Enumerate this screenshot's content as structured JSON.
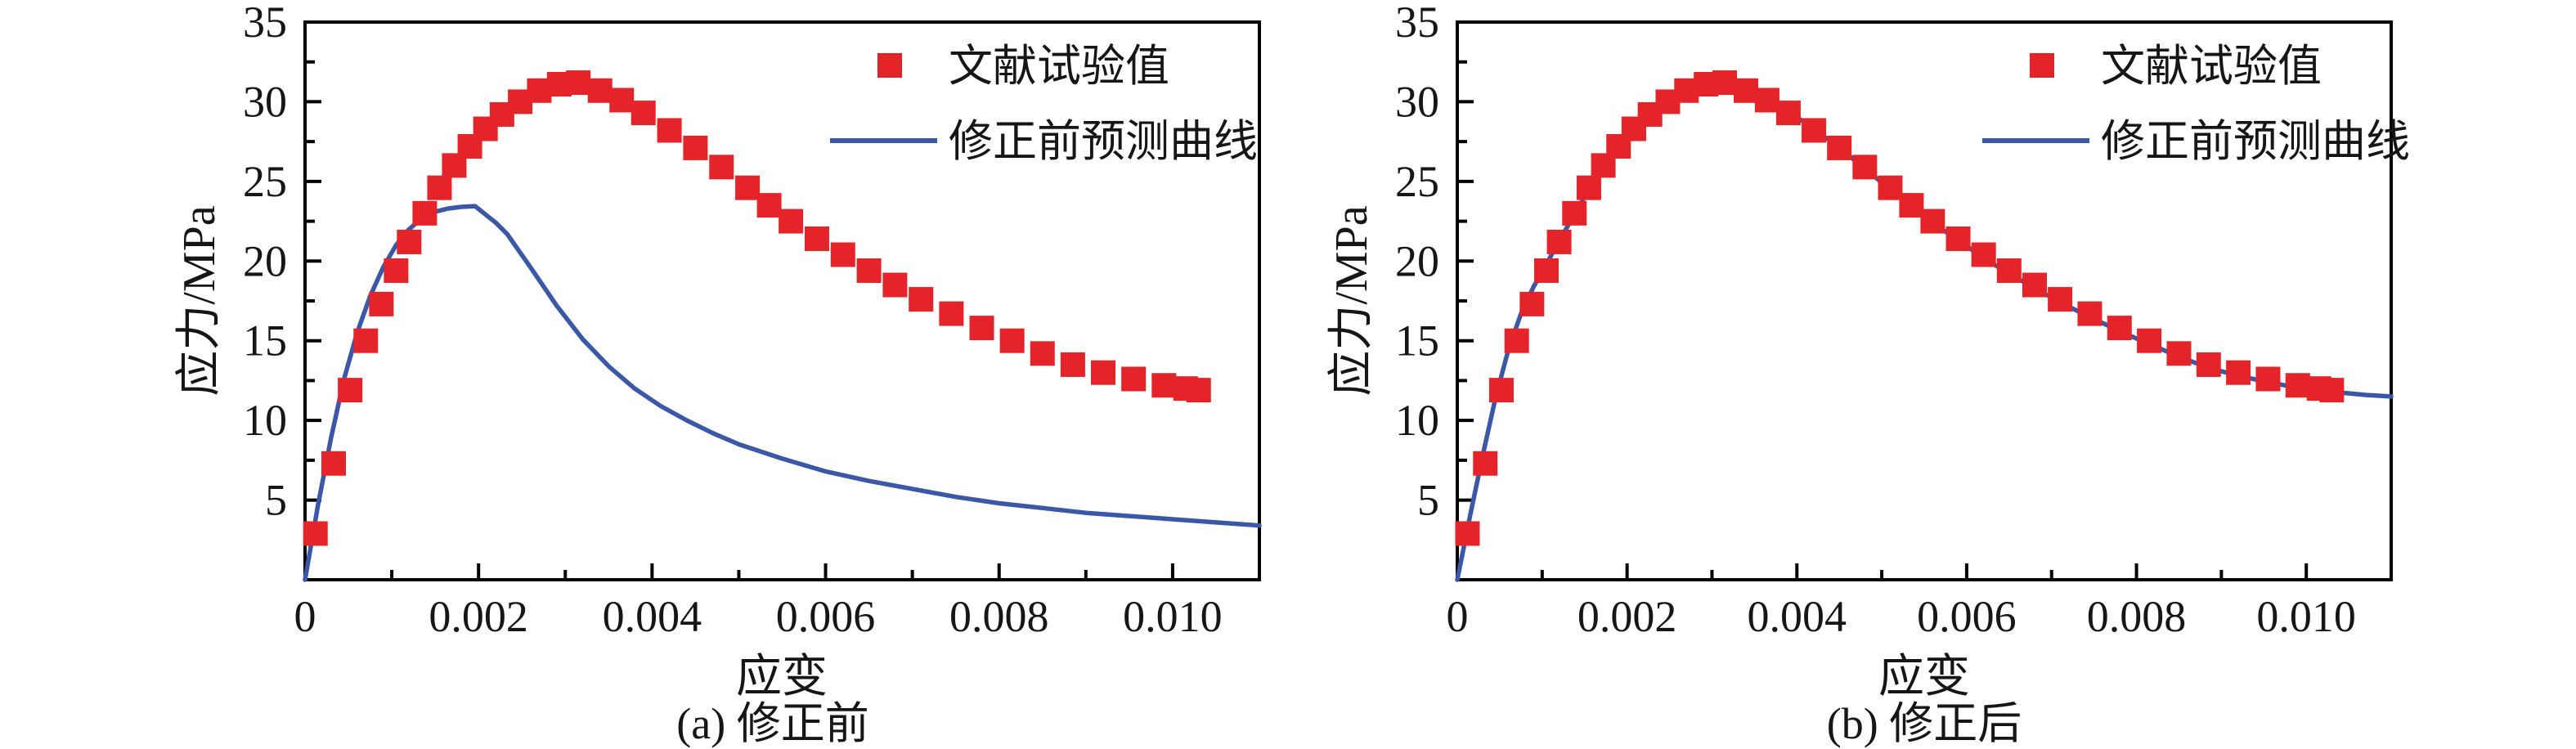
{
  "figure": {
    "background": "#ffffff"
  },
  "colors": {
    "experimental_red": "#e5242a",
    "prediction_blue": "#3a57a8",
    "axis_black": "#000000",
    "text_black": "#161616"
  },
  "chart_data": [
    {
      "type": "scatter",
      "title": "(a) 修正前",
      "xlabel": "应变",
      "ylabel": "应力/MPa",
      "xlim": [
        0,
        0.011
      ],
      "ylim": [
        0,
        35
      ],
      "grid": "off",
      "legend_position": "top-right-inside",
      "xticks_major": [
        0,
        0.002,
        0.004,
        0.006,
        0.008,
        0.01
      ],
      "xtick_labels": [
        "0",
        "0.002",
        "0.004",
        "0.006",
        "0.008",
        "0.010"
      ],
      "xticks_minor": [
        0.001,
        0.003,
        0.005,
        0.007,
        0.009,
        0.011
      ],
      "yticks_major": [
        5,
        10,
        15,
        20,
        25,
        30,
        35
      ],
      "ytick_labels": [
        "5",
        "10",
        "15",
        "20",
        "25",
        "30",
        "35"
      ],
      "yticks_minor": [
        2.5,
        7.5,
        12.5,
        17.5,
        22.5,
        27.5,
        32.5
      ],
      "legend": [
        {
          "name": "文献试验值",
          "kind": "scatter",
          "color": "#e5242a"
        },
        {
          "name": "修正前预测曲线",
          "kind": "line",
          "color": "#3a57a8"
        }
      ],
      "series": [
        {
          "name": "文献试验值",
          "kind": "scatter",
          "marker": "square",
          "color": "#e5242a",
          "points": [
            [
              0.00012,
              2.9
            ],
            [
              0.00033,
              7.3
            ],
            [
              0.00052,
              11.9
            ],
            [
              0.0007,
              15.0
            ],
            [
              0.00088,
              17.3
            ],
            [
              0.00105,
              19.4
            ],
            [
              0.0012,
              21.2
            ],
            [
              0.00138,
              23.0
            ],
            [
              0.00155,
              24.6
            ],
            [
              0.00172,
              26.0
            ],
            [
              0.0019,
              27.2
            ],
            [
              0.00208,
              28.3
            ],
            [
              0.00227,
              29.2
            ],
            [
              0.00248,
              30.0
            ],
            [
              0.0027,
              30.7
            ],
            [
              0.00293,
              31.1
            ],
            [
              0.00315,
              31.2
            ],
            [
              0.0034,
              30.7
            ],
            [
              0.00365,
              30.1
            ],
            [
              0.0039,
              29.3
            ],
            [
              0.0042,
              28.2
            ],
            [
              0.0045,
              27.1
            ],
            [
              0.0048,
              25.9
            ],
            [
              0.0051,
              24.6
            ],
            [
              0.00535,
              23.5
            ],
            [
              0.0056,
              22.5
            ],
            [
              0.0059,
              21.4
            ],
            [
              0.0062,
              20.4
            ],
            [
              0.0065,
              19.4
            ],
            [
              0.0068,
              18.5
            ],
            [
              0.0071,
              17.6
            ],
            [
              0.00745,
              16.7
            ],
            [
              0.0078,
              15.8
            ],
            [
              0.00815,
              15.0
            ],
            [
              0.0085,
              14.2
            ],
            [
              0.00885,
              13.5
            ],
            [
              0.0092,
              13.0
            ],
            [
              0.00955,
              12.6
            ],
            [
              0.0099,
              12.2
            ],
            [
              0.01015,
              12.0
            ],
            [
              0.0103,
              11.9
            ]
          ]
        },
        {
          "name": "修正前预测曲线",
          "kind": "line",
          "color": "#3a57a8",
          "points": [
            [
              0,
              0
            ],
            [
              0.00015,
              4.7
            ],
            [
              0.0003,
              8.9
            ],
            [
              0.00045,
              12.6
            ],
            [
              0.0006,
              15.5
            ],
            [
              0.00075,
              17.8
            ],
            [
              0.0009,
              19.6
            ],
            [
              0.00105,
              21.0
            ],
            [
              0.0012,
              22.0
            ],
            [
              0.00135,
              22.7
            ],
            [
              0.0015,
              23.1
            ],
            [
              0.00165,
              23.3
            ],
            [
              0.0018,
              23.4
            ],
            [
              0.00196,
              23.45
            ],
            [
              0.0022,
              22.4
            ],
            [
              0.00233,
              21.7
            ],
            [
              0.0026,
              19.6
            ],
            [
              0.0029,
              17.2
            ],
            [
              0.0032,
              15.1
            ],
            [
              0.0035,
              13.4
            ],
            [
              0.0038,
              12.0
            ],
            [
              0.0041,
              10.9
            ],
            [
              0.0044,
              10.0
            ],
            [
              0.0047,
              9.2
            ],
            [
              0.005,
              8.5
            ],
            [
              0.0055,
              7.6
            ],
            [
              0.006,
              6.8
            ],
            [
              0.0065,
              6.2
            ],
            [
              0.007,
              5.7
            ],
            [
              0.0075,
              5.2
            ],
            [
              0.008,
              4.8
            ],
            [
              0.0085,
              4.5
            ],
            [
              0.009,
              4.2
            ],
            [
              0.0095,
              4.0
            ],
            [
              0.01,
              3.8
            ],
            [
              0.0105,
              3.6
            ],
            [
              0.011,
              3.4
            ]
          ]
        }
      ]
    },
    {
      "type": "scatter",
      "title": "(b) 修正后",
      "xlabel": "应变",
      "ylabel": "应力/MPa",
      "xlim": [
        0,
        0.011
      ],
      "ylim": [
        0,
        35
      ],
      "grid": "off",
      "legend_position": "top-right-inside",
      "xticks_major": [
        0,
        0.002,
        0.004,
        0.006,
        0.008,
        0.01
      ],
      "xtick_labels": [
        "0",
        "0.002",
        "0.004",
        "0.006",
        "0.008",
        "0.010"
      ],
      "xticks_minor": [
        0.001,
        0.003,
        0.005,
        0.007,
        0.009,
        0.011
      ],
      "yticks_major": [
        5,
        10,
        15,
        20,
        25,
        30,
        35
      ],
      "ytick_labels": [
        "5",
        "10",
        "15",
        "20",
        "25",
        "30",
        "35"
      ],
      "yticks_minor": [
        2.5,
        7.5,
        12.5,
        17.5,
        22.5,
        27.5,
        32.5
      ],
      "legend": [
        {
          "name": "文献试验值",
          "kind": "scatter",
          "color": "#e5242a"
        },
        {
          "name": "修正前预测曲线",
          "kind": "line",
          "color": "#3a57a8"
        }
      ],
      "series": [
        {
          "name": "文献试验值",
          "kind": "scatter",
          "marker": "square",
          "color": "#e5242a",
          "points": [
            [
              0.00012,
              2.9
            ],
            [
              0.00033,
              7.3
            ],
            [
              0.00052,
              11.9
            ],
            [
              0.0007,
              15.0
            ],
            [
              0.00088,
              17.3
            ],
            [
              0.00105,
              19.4
            ],
            [
              0.0012,
              21.2
            ],
            [
              0.00138,
              23.0
            ],
            [
              0.00155,
              24.6
            ],
            [
              0.00172,
              26.0
            ],
            [
              0.0019,
              27.2
            ],
            [
              0.00208,
              28.3
            ],
            [
              0.00227,
              29.2
            ],
            [
              0.00248,
              30.0
            ],
            [
              0.0027,
              30.7
            ],
            [
              0.00293,
              31.1
            ],
            [
              0.00315,
              31.2
            ],
            [
              0.0034,
              30.7
            ],
            [
              0.00365,
              30.1
            ],
            [
              0.0039,
              29.3
            ],
            [
              0.0042,
              28.2
            ],
            [
              0.0045,
              27.1
            ],
            [
              0.0048,
              25.9
            ],
            [
              0.0051,
              24.6
            ],
            [
              0.00535,
              23.5
            ],
            [
              0.0056,
              22.5
            ],
            [
              0.0059,
              21.4
            ],
            [
              0.0062,
              20.4
            ],
            [
              0.0065,
              19.4
            ],
            [
              0.0068,
              18.5
            ],
            [
              0.0071,
              17.6
            ],
            [
              0.00745,
              16.7
            ],
            [
              0.0078,
              15.8
            ],
            [
              0.00815,
              15.0
            ],
            [
              0.0085,
              14.2
            ],
            [
              0.00885,
              13.5
            ],
            [
              0.0092,
              13.0
            ],
            [
              0.00955,
              12.6
            ],
            [
              0.0099,
              12.2
            ],
            [
              0.01015,
              12.0
            ],
            [
              0.0103,
              11.9
            ]
          ]
        },
        {
          "name": "修正前预测曲线",
          "kind": "line",
          "color": "#3a57a8",
          "points": [
            [
              0,
              0
            ],
            [
              0.00015,
              4.0
            ],
            [
              0.0003,
              7.8
            ],
            [
              0.00045,
              11.4
            ],
            [
              0.0006,
              14.4
            ],
            [
              0.00075,
              16.7
            ],
            [
              0.0009,
              18.4
            ],
            [
              0.00105,
              19.8
            ],
            [
              0.0012,
              21.3
            ],
            [
              0.00138,
              22.9
            ],
            [
              0.00155,
              24.5
            ],
            [
              0.00172,
              25.9
            ],
            [
              0.0019,
              27.1
            ],
            [
              0.00208,
              28.2
            ],
            [
              0.00227,
              29.1
            ],
            [
              0.00248,
              29.9
            ],
            [
              0.0027,
              30.6
            ],
            [
              0.00293,
              31.0
            ],
            [
              0.00315,
              31.1
            ],
            [
              0.0034,
              30.8
            ],
            [
              0.00365,
              30.2
            ],
            [
              0.0039,
              29.4
            ],
            [
              0.0042,
              28.3
            ],
            [
              0.0045,
              27.1
            ],
            [
              0.0048,
              25.8
            ],
            [
              0.0051,
              24.5
            ],
            [
              0.00535,
              23.4
            ],
            [
              0.0056,
              22.4
            ],
            [
              0.0059,
              21.3
            ],
            [
              0.0062,
              20.2
            ],
            [
              0.0065,
              19.2
            ],
            [
              0.0068,
              18.3
            ],
            [
              0.0071,
              17.4
            ],
            [
              0.00745,
              16.5
            ],
            [
              0.0078,
              15.6
            ],
            [
              0.00815,
              14.8
            ],
            [
              0.0085,
              14.0
            ],
            [
              0.00885,
              13.3
            ],
            [
              0.0092,
              12.8
            ],
            [
              0.00955,
              12.4
            ],
            [
              0.0099,
              12.05
            ],
            [
              0.0103,
              11.8
            ],
            [
              0.0107,
              11.6
            ],
            [
              0.011,
              11.5
            ]
          ]
        }
      ]
    }
  ]
}
